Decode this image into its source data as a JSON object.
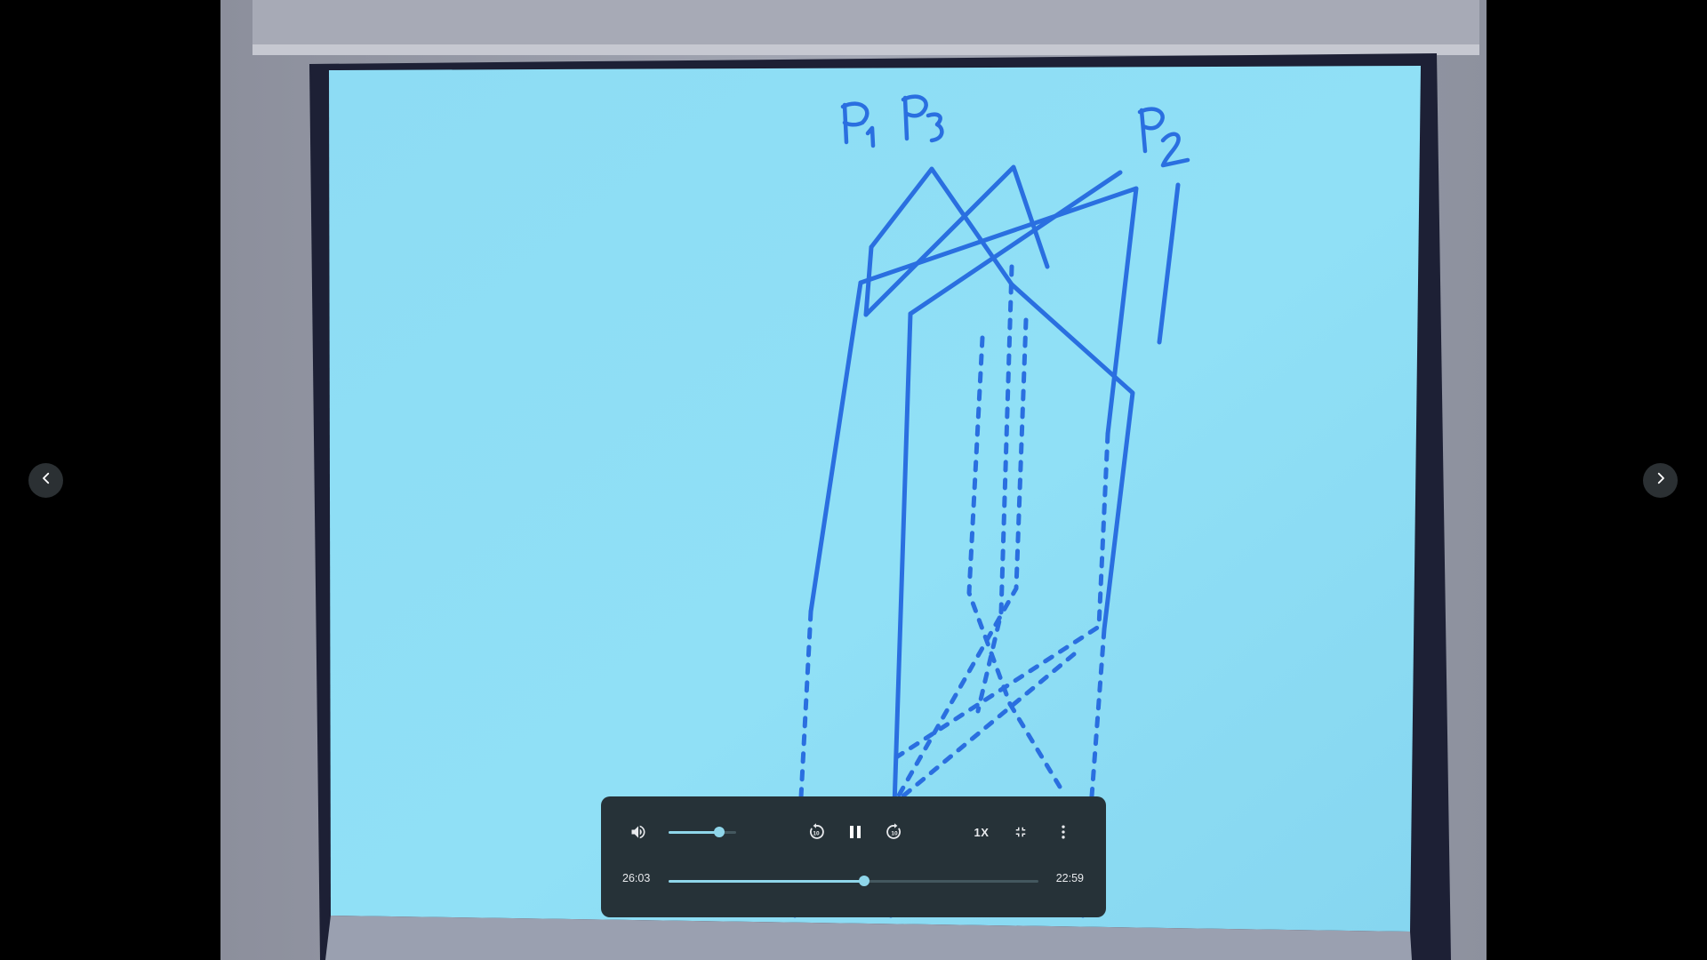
{
  "navigation": {
    "prev_icon": "chevron-left-icon",
    "next_icon": "chevron-right-icon"
  },
  "video_frame": {
    "handwritten_labels": [
      "P1",
      "P3",
      "P2"
    ]
  },
  "player": {
    "volume_icon": "volume-up-icon",
    "volume_level": 0.75,
    "rewind_icon": "rewind-10-icon",
    "play_pause_icon": "pause-icon",
    "forward_icon": "forward-10-icon",
    "speed_label": "1X",
    "exit_fullscreen_icon": "fullscreen-exit-icon",
    "more_icon": "more-vert-icon",
    "current_time": "26:03",
    "duration": "22:59",
    "progress": 0.53,
    "colors": {
      "panel": "#263238",
      "accent": "#8fd6ea",
      "track": "#44585f",
      "text": "#e8eaed"
    }
  }
}
